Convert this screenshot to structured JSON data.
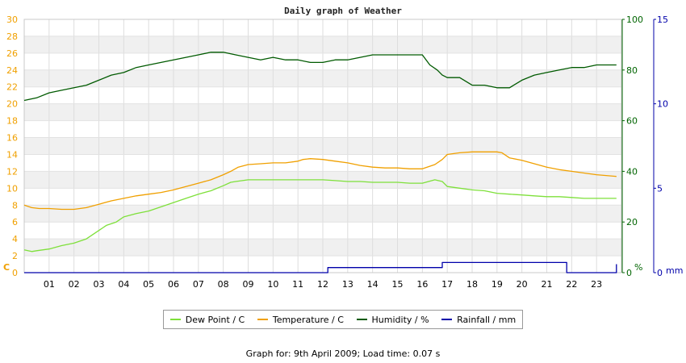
{
  "chart_data": {
    "type": "line",
    "title": "Daily graph of Weather",
    "x_tick_labels": [
      "01",
      "02",
      "03",
      "04",
      "05",
      "06",
      "07",
      "08",
      "09",
      "10",
      "11",
      "12",
      "13",
      "14",
      "15",
      "16",
      "17",
      "18",
      "19",
      "20",
      "21",
      "22",
      "23"
    ],
    "xlim": [
      0,
      24
    ],
    "axes": {
      "left": {
        "label": "C",
        "ticks": [
          0,
          2,
          4,
          6,
          8,
          10,
          12,
          14,
          16,
          18,
          20,
          22,
          24,
          26,
          28,
          30
        ],
        "ylim": [
          0,
          30
        ],
        "color": "#f0a000"
      },
      "right1": {
        "label": "%",
        "ticks": [
          0,
          20,
          40,
          60,
          80,
          100
        ],
        "ylim": [
          0,
          100
        ],
        "color": "#006400"
      },
      "right2": {
        "label": "mm",
        "ticks": [
          0,
          5,
          10,
          15
        ],
        "ylim": [
          0,
          15
        ],
        "color": "#0000aa"
      }
    },
    "grid": true,
    "series": [
      {
        "name": "Dew Point / C",
        "axis": "left",
        "color": "#7ee03a",
        "x": [
          0,
          0.3,
          0.5,
          1,
          1.5,
          2,
          2.5,
          3,
          3.3,
          3.7,
          4,
          4.5,
          5,
          5.5,
          6,
          6.5,
          7,
          7.5,
          8,
          8.3,
          8.5,
          9,
          9.5,
          10,
          10.5,
          11,
          11.5,
          12,
          12.5,
          13,
          13.5,
          14,
          14.5,
          15,
          15.5,
          16,
          16.5,
          16.8,
          17,
          17.5,
          18,
          18.5,
          19,
          19.5,
          20,
          20.5,
          21,
          21.5,
          22,
          22.5,
          23,
          23.8
        ],
        "y": [
          2.7,
          2.5,
          2.6,
          2.8,
          3.2,
          3.5,
          4.0,
          5.0,
          5.6,
          6.0,
          6.6,
          7.0,
          7.3,
          7.8,
          8.3,
          8.8,
          9.3,
          9.7,
          10.3,
          10.7,
          10.8,
          11.0,
          11.0,
          11.0,
          11.0,
          11.0,
          11.0,
          11.0,
          10.9,
          10.8,
          10.8,
          10.7,
          10.7,
          10.7,
          10.6,
          10.6,
          11.0,
          10.8,
          10.2,
          10.0,
          9.8,
          9.7,
          9.4,
          9.3,
          9.2,
          9.1,
          9.0,
          9.0,
          8.9,
          8.8,
          8.8,
          8.8
        ]
      },
      {
        "name": "Temperature / C",
        "axis": "left",
        "color": "#f0a000",
        "x": [
          0,
          0.3,
          0.6,
          1,
          1.5,
          2,
          2.5,
          3,
          3.5,
          4,
          4.5,
          5,
          5.5,
          6,
          6.5,
          7,
          7.5,
          8,
          8.3,
          8.6,
          9,
          9.5,
          10,
          10.5,
          11,
          11.2,
          11.5,
          12,
          12.5,
          13,
          13.5,
          14,
          14.5,
          15,
          15.5,
          16,
          16.5,
          16.8,
          17,
          17.5,
          18,
          18.5,
          19,
          19.2,
          19.5,
          20,
          20.5,
          21,
          21.5,
          22,
          22.5,
          23,
          23.8
        ],
        "y": [
          8.0,
          7.7,
          7.6,
          7.6,
          7.5,
          7.5,
          7.7,
          8.1,
          8.5,
          8.8,
          9.1,
          9.3,
          9.5,
          9.8,
          10.2,
          10.6,
          11.0,
          11.6,
          12.0,
          12.5,
          12.8,
          12.9,
          13.0,
          13.0,
          13.2,
          13.4,
          13.5,
          13.4,
          13.2,
          13.0,
          12.7,
          12.5,
          12.4,
          12.4,
          12.3,
          12.3,
          12.8,
          13.4,
          14.0,
          14.2,
          14.3,
          14.3,
          14.3,
          14.2,
          13.6,
          13.3,
          12.9,
          12.5,
          12.2,
          12.0,
          11.8,
          11.6,
          11.4
        ]
      },
      {
        "name": "Humidity / %",
        "axis": "right1",
        "color": "#005a00",
        "x": [
          0,
          0.5,
          1,
          1.5,
          2,
          2.5,
          3,
          3.5,
          4,
          4.5,
          5,
          5.5,
          6,
          6.5,
          7,
          7.5,
          8,
          8.5,
          9,
          9.5,
          10,
          10.5,
          11,
          11.5,
          12,
          12.5,
          13,
          13.5,
          14,
          14.5,
          15,
          15.5,
          16,
          16.3,
          16.6,
          16.8,
          17,
          17.5,
          18,
          18.5,
          19,
          19.5,
          20,
          20.5,
          21,
          21.5,
          22,
          22.5,
          23,
          23.8
        ],
        "y": [
          68,
          69,
          71,
          72,
          73,
          74,
          76,
          78,
          79,
          81,
          82,
          83,
          84,
          85,
          86,
          87,
          87,
          86,
          85,
          84,
          85,
          84,
          84,
          83,
          83,
          84,
          84,
          85,
          86,
          86,
          86,
          86,
          86,
          82,
          80,
          78,
          77,
          77,
          74,
          74,
          73,
          73,
          76,
          78,
          79,
          80,
          81,
          81,
          82,
          82
        ]
      },
      {
        "name": "Rainfall / mm",
        "axis": "right2",
        "color": "#0000aa",
        "x": [
          0,
          12.2,
          12.2,
          16.8,
          16.8,
          21.8,
          21.8,
          23.8,
          23.8
        ],
        "y": [
          0,
          0,
          0.3,
          0.3,
          0.6,
          0.6,
          0,
          0,
          0.5
        ]
      }
    ]
  },
  "footer": {
    "text": "Graph for: 9th April 2009; Load time: 0.07 s"
  }
}
